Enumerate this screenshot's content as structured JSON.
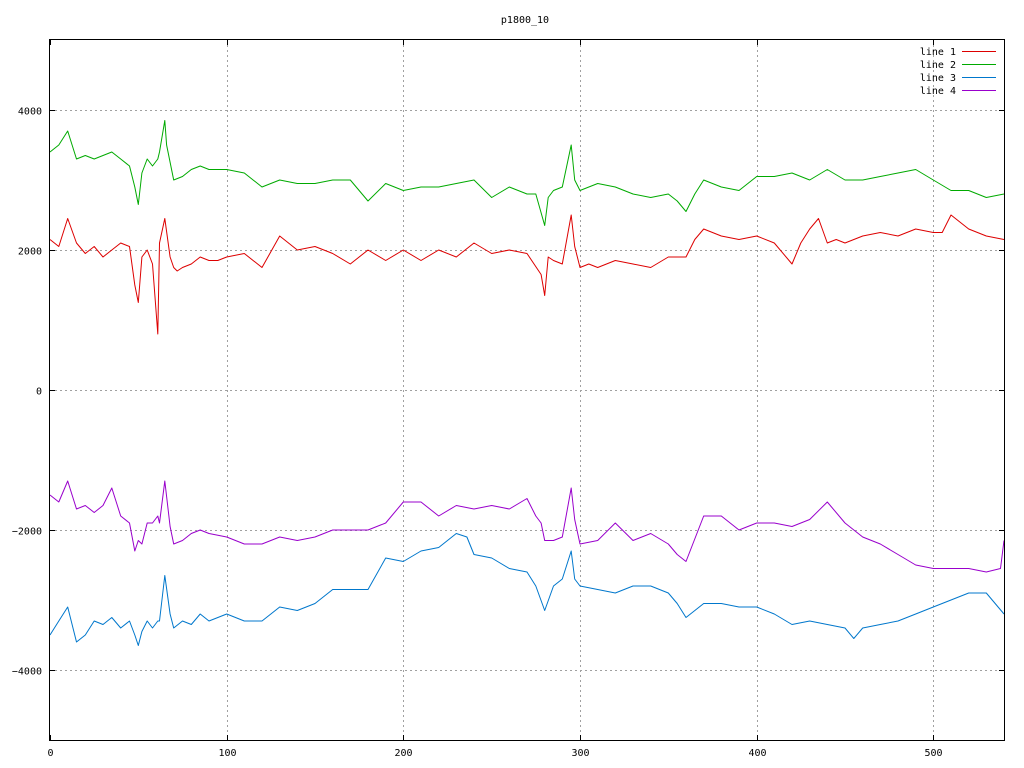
{
  "chart_data": {
    "type": "line",
    "title": "p1800_10",
    "xlabel": "",
    "ylabel": "",
    "xlim": [
      0,
      540
    ],
    "ylim": [
      -5000,
      5000
    ],
    "xticks": [
      0,
      100,
      200,
      300,
      400,
      500
    ],
    "yticks": [
      -4000,
      -2000,
      0,
      2000,
      4000
    ],
    "grid": true,
    "legend_position": "top-right",
    "series": [
      {
        "name": "line 1",
        "color": "#dd0000",
        "x": [
          0,
          5,
          10,
          15,
          20,
          25,
          30,
          35,
          40,
          45,
          48,
          50,
          52,
          55,
          58,
          61,
          62,
          65,
          68,
          70,
          72,
          75,
          80,
          85,
          90,
          95,
          100,
          110,
          120,
          130,
          140,
          150,
          160,
          170,
          180,
          190,
          200,
          210,
          220,
          230,
          240,
          250,
          260,
          270,
          278,
          280,
          282,
          285,
          290,
          295,
          297,
          300,
          305,
          310,
          320,
          330,
          340,
          350,
          355,
          360,
          365,
          370,
          380,
          390,
          400,
          410,
          420,
          425,
          430,
          435,
          440,
          445,
          450,
          460,
          470,
          480,
          490,
          500,
          505,
          510,
          520,
          530,
          540
        ],
        "values": [
          2150,
          2050,
          2450,
          2100,
          1950,
          2050,
          1900,
          2000,
          2100,
          2050,
          1500,
          1250,
          1900,
          2000,
          1800,
          800,
          2100,
          2450,
          1900,
          1750,
          1700,
          1750,
          1800,
          1900,
          1850,
          1850,
          1900,
          1950,
          1750,
          2200,
          2000,
          2050,
          1950,
          1800,
          2000,
          1850,
          2000,
          1850,
          2000,
          1900,
          2100,
          1950,
          2000,
          1950,
          1650,
          1350,
          1900,
          1850,
          1800,
          2500,
          2050,
          1750,
          1800,
          1750,
          1850,
          1800,
          1750,
          1900,
          1900,
          1900,
          2150,
          2300,
          2200,
          2150,
          2200,
          2100,
          1800,
          2100,
          2300,
          2450,
          2100,
          2150,
          2100,
          2200,
          2250,
          2200,
          2300,
          2250,
          2250,
          2500,
          2300,
          2200,
          2150
        ]
      },
      {
        "name": "line 2",
        "color": "#00aa00",
        "x": [
          0,
          5,
          10,
          15,
          20,
          25,
          30,
          35,
          40,
          45,
          48,
          50,
          52,
          55,
          58,
          61,
          62,
          65,
          66,
          70,
          75,
          80,
          85,
          90,
          100,
          110,
          120,
          130,
          140,
          150,
          160,
          170,
          180,
          190,
          200,
          210,
          220,
          230,
          240,
          250,
          260,
          270,
          275,
          280,
          282,
          285,
          290,
          295,
          297,
          300,
          310,
          320,
          330,
          340,
          350,
          355,
          360,
          365,
          370,
          380,
          390,
          400,
          410,
          420,
          430,
          440,
          450,
          460,
          470,
          480,
          490,
          500,
          510,
          520,
          530,
          540
        ],
        "values": [
          3400,
          3500,
          3700,
          3300,
          3350,
          3300,
          3350,
          3400,
          3300,
          3200,
          2900,
          2650,
          3100,
          3300,
          3200,
          3300,
          3400,
          3850,
          3500,
          3000,
          3050,
          3150,
          3200,
          3150,
          3150,
          3100,
          2900,
          3000,
          2950,
          2950,
          3000,
          3000,
          2700,
          2950,
          2850,
          2900,
          2900,
          2950,
          3000,
          2750,
          2900,
          2800,
          2800,
          2350,
          2750,
          2850,
          2900,
          3500,
          3000,
          2850,
          2950,
          2900,
          2800,
          2750,
          2800,
          2700,
          2550,
          2800,
          3000,
          2900,
          2850,
          3050,
          3050,
          3100,
          3000,
          3150,
          3000,
          3000,
          3050,
          3100,
          3150,
          3000,
          2850,
          2850,
          2750,
          2800
        ]
      },
      {
        "name": "line 3",
        "color": "#0077cc",
        "x": [
          0,
          5,
          10,
          15,
          20,
          25,
          30,
          35,
          40,
          45,
          48,
          50,
          52,
          55,
          58,
          61,
          62,
          65,
          68,
          70,
          75,
          80,
          85,
          90,
          100,
          110,
          120,
          130,
          140,
          150,
          160,
          170,
          180,
          190,
          200,
          210,
          220,
          230,
          236,
          240,
          250,
          260,
          270,
          275,
          280,
          285,
          290,
          295,
          297,
          300,
          310,
          320,
          330,
          340,
          350,
          355,
          360,
          370,
          380,
          390,
          400,
          410,
          420,
          430,
          440,
          450,
          455,
          460,
          470,
          480,
          490,
          500,
          510,
          520,
          530,
          540
        ],
        "values": [
          -3500,
          -3300,
          -3100,
          -3600,
          -3500,
          -3300,
          -3350,
          -3250,
          -3400,
          -3300,
          -3500,
          -3650,
          -3450,
          -3300,
          -3400,
          -3300,
          -3300,
          -2650,
          -3200,
          -3400,
          -3300,
          -3350,
          -3200,
          -3300,
          -3200,
          -3300,
          -3300,
          -3100,
          -3150,
          -3050,
          -2850,
          -2850,
          -2850,
          -2400,
          -2450,
          -2300,
          -2250,
          -2050,
          -2100,
          -2350,
          -2400,
          -2550,
          -2600,
          -2800,
          -3150,
          -2800,
          -2700,
          -2300,
          -2700,
          -2800,
          -2850,
          -2900,
          -2800,
          -2800,
          -2900,
          -3050,
          -3250,
          -3050,
          -3050,
          -3100,
          -3100,
          -3200,
          -3350,
          -3300,
          -3350,
          -3400,
          -3550,
          -3400,
          -3350,
          -3300,
          -3200,
          -3100,
          -3000,
          -2900,
          -2900,
          -3200
        ]
      },
      {
        "name": "line 4",
        "color": "#9900cc",
        "x": [
          0,
          5,
          10,
          15,
          20,
          25,
          30,
          35,
          40,
          45,
          48,
          50,
          52,
          55,
          58,
          61,
          62,
          65,
          68,
          70,
          75,
          80,
          85,
          90,
          100,
          110,
          120,
          130,
          140,
          150,
          160,
          170,
          180,
          190,
          200,
          210,
          220,
          230,
          240,
          250,
          260,
          270,
          275,
          278,
          280,
          285,
          290,
          295,
          297,
          300,
          310,
          320,
          330,
          340,
          350,
          355,
          360,
          370,
          380,
          390,
          400,
          410,
          420,
          430,
          440,
          450,
          460,
          470,
          480,
          490,
          500,
          510,
          520,
          530,
          538,
          540
        ],
        "values": [
          -1500,
          -1600,
          -1300,
          -1700,
          -1650,
          -1750,
          -1650,
          -1400,
          -1800,
          -1900,
          -2300,
          -2150,
          -2200,
          -1900,
          -1900,
          -1800,
          -1900,
          -1300,
          -1950,
          -2200,
          -2150,
          -2050,
          -2000,
          -2050,
          -2100,
          -2200,
          -2200,
          -2100,
          -2150,
          -2100,
          -2000,
          -2000,
          -2000,
          -1900,
          -1600,
          -1600,
          -1800,
          -1650,
          -1700,
          -1650,
          -1700,
          -1550,
          -1800,
          -1900,
          -2150,
          -2150,
          -2100,
          -1400,
          -1850,
          -2200,
          -2150,
          -1900,
          -2150,
          -2050,
          -2200,
          -2350,
          -2450,
          -1800,
          -1800,
          -2000,
          -1900,
          -1900,
          -1950,
          -1850,
          -1600,
          -1900,
          -2100,
          -2200,
          -2350,
          -2500,
          -2550,
          -2550,
          -2550,
          -2600,
          -2550,
          -2150
        ]
      }
    ]
  }
}
